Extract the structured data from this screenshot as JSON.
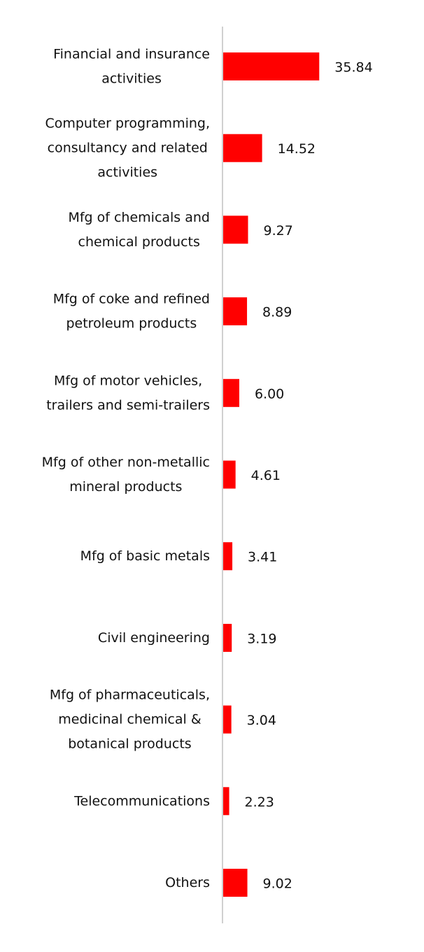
{
  "chart_data": {
    "type": "barh",
    "categories": [
      "Financial and insurance activities",
      "Computer programming, consultancy and related activities",
      "Mfg of chemicals and chemical products",
      "Mfg of coke and refined petroleum products",
      "Mfg of motor vehicles, trailers and semi-trailers",
      "Mfg of other non-metallic mineral products",
      "Mfg of basic metals",
      "Civil engineering",
      "Mfg of pharmaceuticals, medicinal chemical & botanical products",
      "Telecommunications",
      "Others"
    ],
    "values": [
      35.84,
      14.52,
      9.27,
      8.89,
      6.0,
      4.61,
      3.41,
      3.19,
      3.04,
      2.23,
      9.02
    ],
    "value_labels": [
      "35.84",
      "14.52",
      "9.27",
      "8.89",
      "6.00",
      "4.61",
      "3.41",
      "3.19",
      "3.04",
      "2.23",
      "9.02"
    ],
    "color": "#ff0000"
  }
}
